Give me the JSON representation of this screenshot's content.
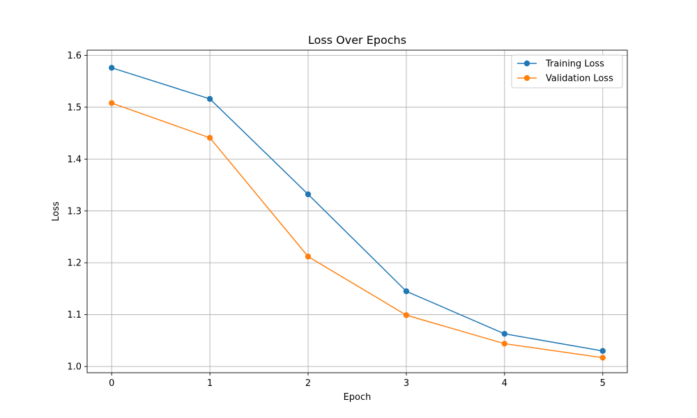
{
  "chart_data": {
    "type": "line",
    "title": "Loss Over Epochs",
    "xlabel": "Epoch",
    "ylabel": "Loss",
    "x": [
      0,
      1,
      2,
      3,
      4,
      5
    ],
    "xlim": [
      -0.25,
      5.25
    ],
    "ylim": [
      0.988,
      1.61
    ],
    "xticks": [
      "0",
      "1",
      "2",
      "3",
      "4",
      "5"
    ],
    "yticks": [
      "1.0",
      "1.1",
      "1.2",
      "1.3",
      "1.4",
      "1.5",
      "1.6"
    ],
    "grid": true,
    "legend_position": "top-right",
    "series": [
      {
        "name": "Training Loss",
        "color": "#1f77b4",
        "marker": "circle",
        "values": [
          1.576,
          1.516,
          1.332,
          1.145,
          1.063,
          1.03
        ]
      },
      {
        "name": "Validation Loss",
        "color": "#ff7f0e",
        "marker": "circle",
        "values": [
          1.508,
          1.441,
          1.212,
          1.099,
          1.044,
          1.017
        ]
      }
    ]
  }
}
